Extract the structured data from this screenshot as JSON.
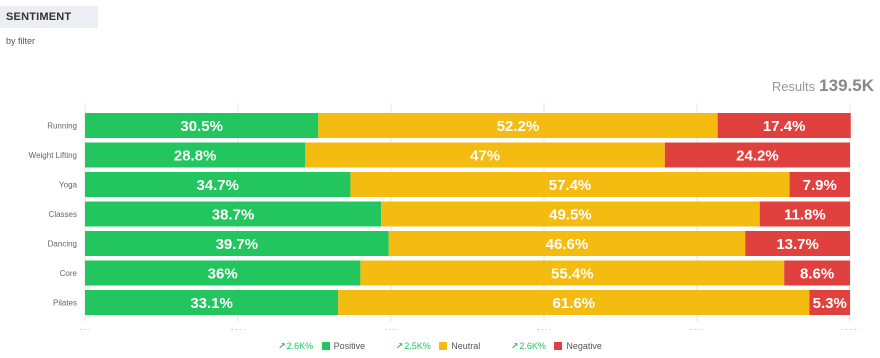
{
  "header": {
    "title": "SENTIMENT",
    "subtitle": "by filter"
  },
  "results": {
    "label": "Results",
    "value": "139.5K"
  },
  "chart_data": {
    "type": "bar",
    "orientation": "horizontal",
    "stacked": true,
    "categories": [
      "Running",
      "Weight Lifting",
      "Yoga",
      "Classes",
      "Dancing",
      "Core",
      "Pilates"
    ],
    "series": [
      {
        "name": "Positive",
        "color": "#22c55e",
        "values": [
          30.5,
          28.8,
          34.7,
          38.7,
          39.7,
          36,
          33.1
        ],
        "labels": [
          "30.5%",
          "28.8%",
          "34.7%",
          "38.7%",
          "39.7%",
          "36%",
          "33.1%"
        ]
      },
      {
        "name": "Neutral",
        "color": "#f4bb11",
        "values": [
          52.2,
          47,
          57.4,
          49.5,
          46.6,
          55.4,
          61.6
        ],
        "labels": [
          "52.2%",
          "47%",
          "57.4%",
          "49.5%",
          "46.6%",
          "55.4%",
          "61.6%"
        ]
      },
      {
        "name": "Negative",
        "color": "#e0413e",
        "values": [
          17.4,
          24.2,
          7.9,
          11.8,
          13.7,
          8.6,
          5.3
        ],
        "labels": [
          "17.4%",
          "24.2%",
          "7.9%",
          "11.8%",
          "13.7%",
          "8.6%",
          "5.3%"
        ]
      }
    ],
    "xticks": [
      "0%",
      "20%",
      "40%",
      "60%",
      "80%",
      "100%"
    ],
    "xlim": [
      0,
      100
    ],
    "grid": true,
    "legend_position": "bottom"
  },
  "legend": [
    {
      "trend": "2.6K%",
      "label": "Positive",
      "color": "#22c55e"
    },
    {
      "trend": "2.5K%",
      "label": "Neutral",
      "color": "#f4bb11"
    },
    {
      "trend": "2.6K%",
      "label": "Negative",
      "color": "#e0413e"
    }
  ]
}
